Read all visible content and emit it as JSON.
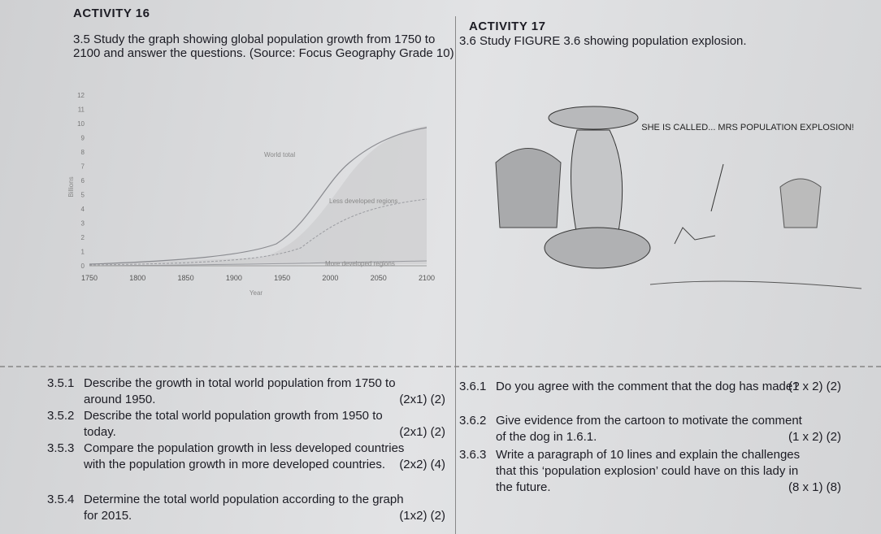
{
  "activity16": {
    "title": "ACTIVITY 16",
    "question": "3.5 Study the graph showing global population growth from 1750 to 2100 and answer the questions. (Source: Focus Geography Grade 10)",
    "graph": {
      "y_label": "Billions",
      "x_label": "Year",
      "yticks": [
        0,
        1,
        2,
        3,
        4,
        5,
        6,
        7,
        8,
        9,
        10,
        11,
        12
      ],
      "xticks": [
        1750,
        1800,
        1850,
        1900,
        1950,
        2000,
        2050,
        2100
      ],
      "labels": [
        "World total",
        "Less developed regions",
        "More developed regions"
      ]
    }
  },
  "activity17": {
    "title": "ACTIVITY 17",
    "question": "3.6 Study FIGURE 3.6 showing population explosion.",
    "cartoon_caption": "SHE IS CALLED... MRS POPULATION EXPLOSION!"
  },
  "questions_left": [
    {
      "number": "3.5.1",
      "text": "Describe the growth in total world population from 1750 to around 1950.",
      "marks": "(2x1) (2)"
    },
    {
      "number": "3.5.2",
      "text": "Describe the total world population growth from 1950 to today.",
      "marks": "(2x1) (2)"
    },
    {
      "number": "3.5.3",
      "text": "Compare the population growth in less developed countries with the population growth in more developed countries.",
      "marks": "(2x2) (4)"
    },
    {
      "number": "3.5.4",
      "text": "Determine the total world population according to the graph for 2015.",
      "marks": "(1x2) (2)"
    }
  ],
  "questions_right": [
    {
      "number": "3.6.1",
      "text": "Do you agree with the comment that the dog has made?",
      "marks": "(1 x 2) (2)"
    },
    {
      "number": "3.6.2",
      "text": "Give evidence from the cartoon to motivate the comment of the dog in 1.6.1.",
      "marks": "(1 x 2) (2)"
    },
    {
      "number": "3.6.3",
      "text": "Write a paragraph of 10 lines and explain the challenges that this ‘population explosion’ could have on this lady in the future.",
      "marks": "(8 x 1) (8)"
    }
  ]
}
